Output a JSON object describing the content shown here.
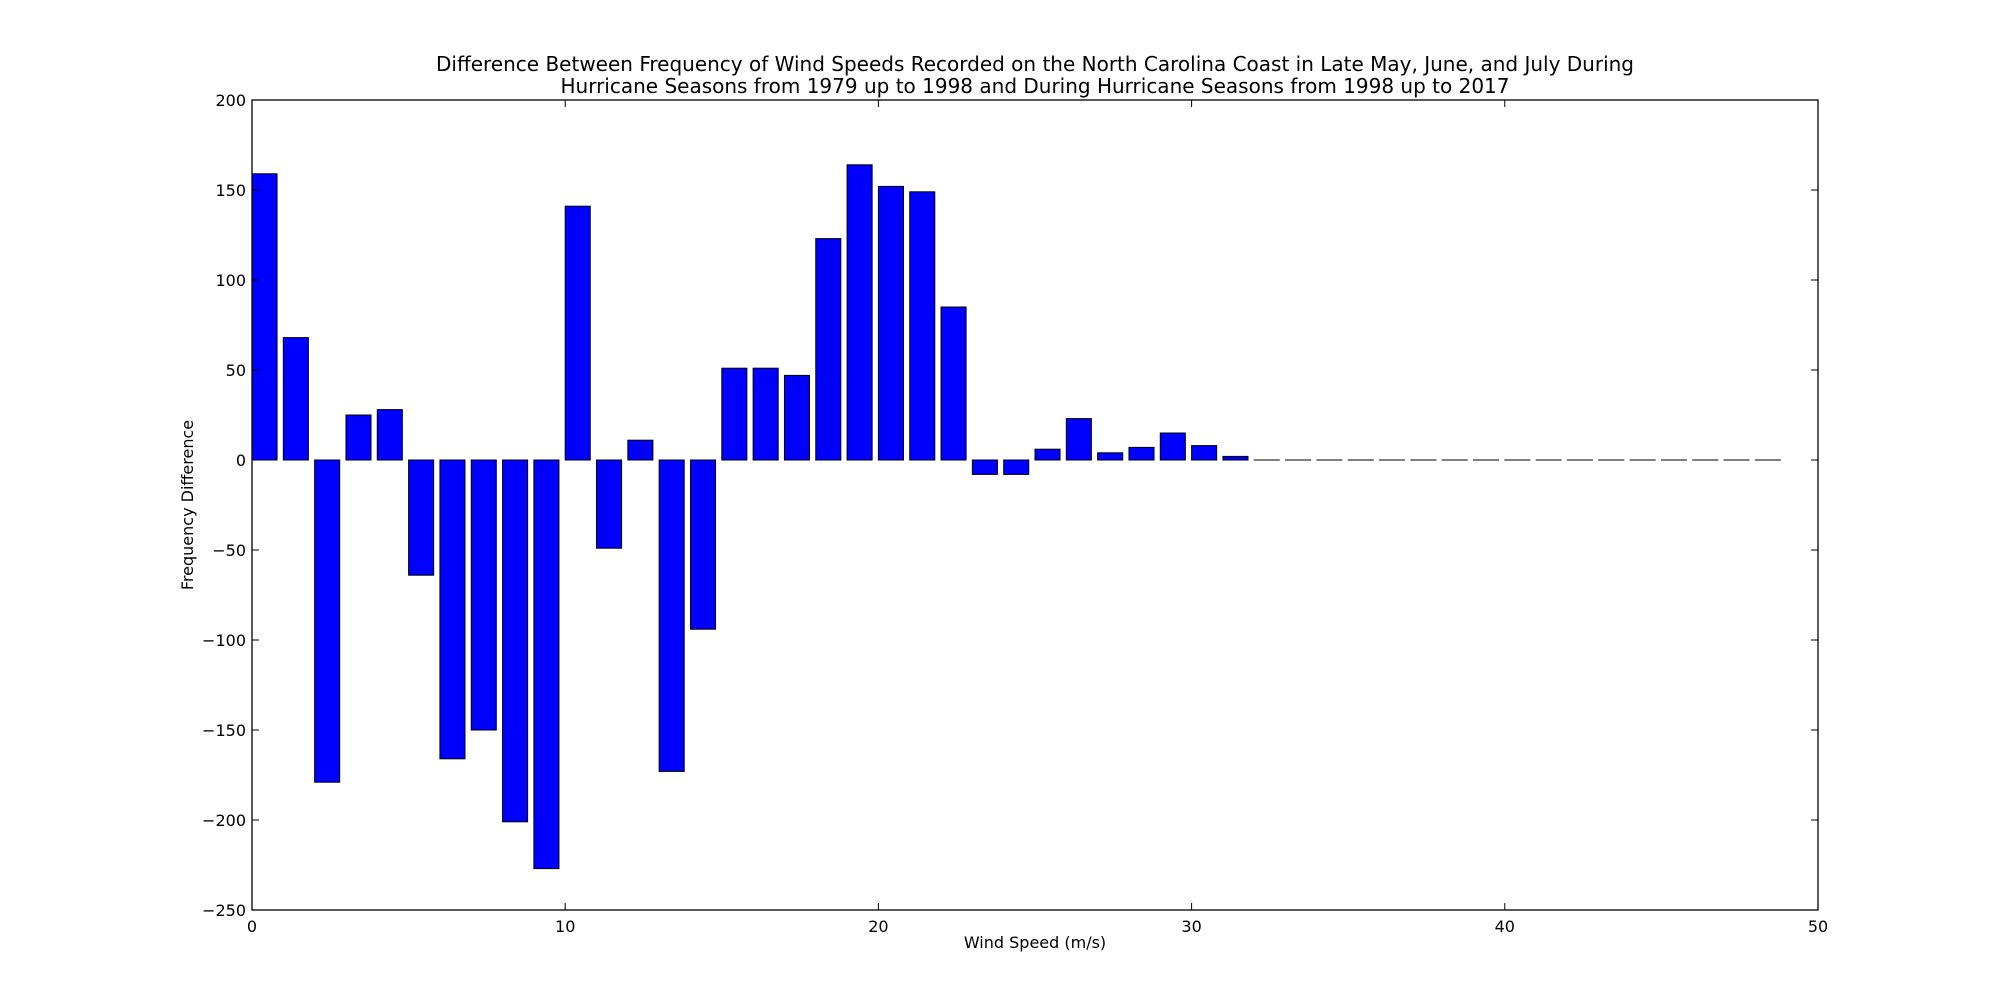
{
  "chart_data": {
    "type": "bar",
    "title_lines": [
      "Difference Between Frequency of Wind Speeds Recorded on the North Carolina Coast in Late May, June, and July During",
      "Hurricane Seasons from 1979 up to 1998 and During Hurricane Seasons from 1998 up to 2017"
    ],
    "xlabel": "Wind Speed (m/s)",
    "ylabel": "Frequency Difference",
    "xlim": [
      0,
      50
    ],
    "ylim": [
      -250,
      200
    ],
    "xticks": [
      0,
      10,
      20,
      30,
      40,
      50
    ],
    "yticks": [
      200,
      150,
      100,
      50,
      0,
      -50,
      -100,
      -150,
      -200,
      -250
    ],
    "x": [
      0,
      1,
      2,
      3,
      4,
      5,
      6,
      7,
      8,
      9,
      10,
      11,
      12,
      13,
      14,
      15,
      16,
      17,
      18,
      19,
      20,
      21,
      22,
      23,
      24,
      25,
      26,
      27,
      28,
      29,
      30,
      31,
      32,
      33,
      34,
      35,
      36,
      37,
      38,
      39,
      40,
      41,
      42,
      43,
      44,
      45,
      46,
      47,
      48
    ],
    "bar_width": 0.8,
    "values": [
      159,
      68,
      -179,
      25,
      28,
      -64,
      -166,
      -150,
      -201,
      -227,
      141,
      -49,
      11,
      -173,
      -94,
      51,
      51,
      47,
      123,
      164,
      152,
      149,
      85,
      -8,
      -8,
      6,
      23,
      4,
      7,
      15,
      8,
      2,
      0,
      0,
      0,
      0,
      0,
      0,
      0,
      0,
      0,
      0,
      0,
      0,
      0,
      0,
      0,
      0,
      0
    ],
    "grid": false,
    "colors": {
      "bar_fill": "#0000ff",
      "bar_edge": "#000000",
      "axes": "#000000",
      "background": "#ffffff"
    }
  }
}
